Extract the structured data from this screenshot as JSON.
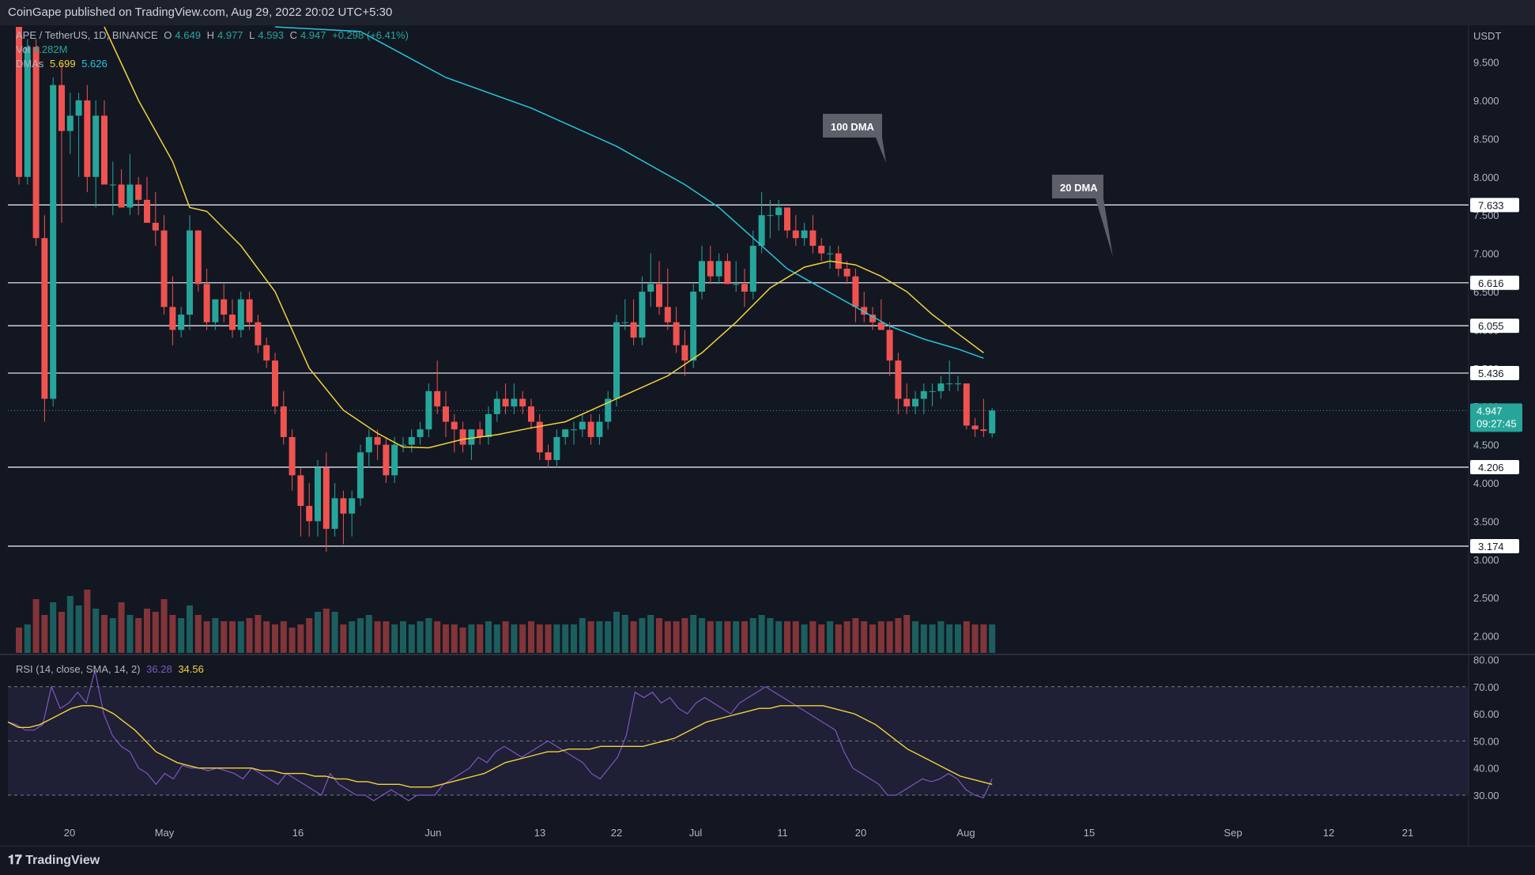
{
  "header": {
    "published": "CoinGape published on TradingView.com, Aug 29, 2022 20:02 UTC+5:30"
  },
  "legend": {
    "symbol": "APE / TetherUS, 1D, BINANCE",
    "o_label": "O",
    "o_value": "4.649",
    "h_label": "H",
    "h_value": "4.977",
    "l_label": "L",
    "l_value": "4.593",
    "c_label": "C",
    "c_value": "4.947",
    "change": "+0.298 (+6.41%)",
    "vol_label": "Vol",
    "vol_value": "4.282M",
    "dma_label": "DMAs",
    "dma_20": "5.699",
    "dma_100": "5.626"
  },
  "rsi_legend": {
    "label": "RSI (14, close, SMA, 14, 2)",
    "rsi": "36.28",
    "sma": "34.56"
  },
  "footer": {
    "brand": "TradingView"
  },
  "colors": {
    "up": "#26a69a",
    "down": "#ef5350",
    "dma20": "#f0d33c",
    "dma100": "#26c6da",
    "rsi": "#7e57c2",
    "rsi_sma": "#f0d33c"
  },
  "chart_data": {
    "type": "candlestick",
    "currency": "USDT",
    "price_ticks": [
      "9.500",
      "9.000",
      "8.500",
      "8.000",
      "7.500",
      "7.000",
      "6.500",
      "6.000",
      "5.500",
      "5.000",
      "4.500",
      "4.000",
      "3.500",
      "3.000",
      "2.500",
      "2.000"
    ],
    "x_ticks": [
      "20",
      "May",
      "16",
      "Jun",
      "13",
      "22",
      "Jul",
      "11",
      "20",
      "Aug",
      "15",
      "Sep",
      "12",
      "21"
    ],
    "levels": [
      {
        "label": "7.633",
        "value": 7.633
      },
      {
        "label": "6.616",
        "value": 6.616
      },
      {
        "label": "6.055",
        "value": 6.055
      },
      {
        "label": "5.436",
        "value": 5.436
      },
      {
        "label": "4.206",
        "value": 4.206
      },
      {
        "label": "3.174",
        "value": 3.174
      }
    ],
    "current_price": {
      "label": "4.947",
      "value": 4.947,
      "countdown": "09:27:45"
    },
    "annotations": [
      {
        "text": "100 DMA"
      },
      {
        "text": "20 DMA"
      }
    ],
    "candles": [
      [
        10.8,
        11.0,
        7.9,
        8.0
      ],
      [
        8.0,
        9.8,
        7.9,
        9.7
      ],
      [
        9.7,
        9.8,
        7.1,
        7.2
      ],
      [
        7.2,
        7.5,
        4.8,
        5.1
      ],
      [
        5.1,
        9.3,
        5.0,
        9.2
      ],
      [
        9.2,
        9.5,
        7.4,
        8.6
      ],
      [
        8.6,
        9.1,
        8.3,
        8.8
      ],
      [
        8.8,
        9.1,
        8.0,
        9.0
      ],
      [
        9.0,
        9.2,
        7.8,
        8.0
      ],
      [
        8.0,
        9.0,
        7.6,
        8.8
      ],
      [
        8.8,
        9.0,
        7.9,
        7.9
      ],
      [
        7.9,
        8.2,
        7.5,
        7.9
      ],
      [
        7.9,
        8.1,
        7.6,
        7.6
      ],
      [
        7.6,
        8.3,
        7.5,
        7.9
      ],
      [
        7.9,
        8.0,
        7.5,
        7.7
      ],
      [
        7.7,
        8.0,
        7.4,
        7.4
      ],
      [
        7.4,
        7.8,
        7.1,
        7.3
      ],
      [
        7.3,
        7.5,
        6.2,
        6.3
      ],
      [
        6.3,
        6.7,
        5.8,
        6.0
      ],
      [
        6.0,
        6.3,
        5.9,
        6.2
      ],
      [
        6.2,
        7.5,
        6.0,
        7.3
      ],
      [
        7.3,
        7.3,
        6.5,
        6.6
      ],
      [
        6.6,
        6.8,
        6.0,
        6.1
      ],
      [
        6.1,
        6.4,
        6.0,
        6.4
      ],
      [
        6.4,
        6.6,
        6.1,
        6.2
      ],
      [
        6.2,
        6.4,
        5.9,
        6.0
      ],
      [
        6.0,
        6.5,
        5.9,
        6.4
      ],
      [
        6.4,
        6.5,
        6.0,
        6.1
      ],
      [
        6.1,
        6.2,
        5.7,
        5.8
      ],
      [
        5.8,
        5.9,
        5.5,
        5.6
      ],
      [
        5.6,
        5.7,
        4.9,
        5.0
      ],
      [
        5.0,
        5.2,
        4.5,
        4.6
      ],
      [
        4.6,
        4.7,
        3.9,
        4.1
      ],
      [
        4.1,
        4.2,
        3.3,
        3.7
      ],
      [
        3.7,
        4.0,
        3.3,
        3.5
      ],
      [
        3.5,
        4.3,
        3.3,
        4.2
      ],
      [
        4.2,
        4.4,
        3.1,
        3.4
      ],
      [
        3.4,
        4.0,
        3.3,
        3.8
      ],
      [
        3.8,
        3.9,
        3.2,
        3.6
      ],
      [
        3.6,
        3.9,
        3.3,
        3.8
      ],
      [
        3.8,
        4.5,
        3.7,
        4.4
      ],
      [
        4.4,
        4.7,
        4.2,
        4.6
      ],
      [
        4.6,
        4.7,
        4.3,
        4.5
      ],
      [
        4.5,
        4.6,
        4.0,
        4.1
      ],
      [
        4.1,
        4.6,
        4.0,
        4.5
      ],
      [
        4.5,
        4.6,
        4.4,
        4.5
      ],
      [
        4.5,
        4.7,
        4.4,
        4.6
      ],
      [
        4.6,
        4.8,
        4.5,
        4.7
      ],
      [
        4.7,
        5.3,
        4.6,
        5.2
      ],
      [
        5.2,
        5.6,
        4.9,
        5.0
      ],
      [
        5.0,
        5.2,
        4.6,
        4.8
      ],
      [
        4.8,
        4.9,
        4.4,
        4.7
      ],
      [
        4.7,
        4.8,
        4.4,
        4.5
      ],
      [
        4.5,
        4.7,
        4.3,
        4.7
      ],
      [
        4.7,
        4.8,
        4.5,
        4.6
      ],
      [
        4.6,
        5.0,
        4.5,
        4.9
      ],
      [
        4.9,
        5.2,
        4.8,
        5.1
      ],
      [
        5.1,
        5.3,
        4.9,
        5.0
      ],
      [
        5.0,
        5.3,
        4.9,
        5.1
      ],
      [
        5.1,
        5.2,
        4.9,
        5.0
      ],
      [
        5.0,
        5.1,
        4.7,
        4.8
      ],
      [
        4.8,
        4.9,
        4.3,
        4.4
      ],
      [
        4.4,
        4.5,
        4.2,
        4.3
      ],
      [
        4.3,
        4.7,
        4.2,
        4.6
      ],
      [
        4.6,
        4.7,
        4.5,
        4.7
      ],
      [
        4.7,
        4.8,
        4.5,
        4.7
      ],
      [
        4.7,
        4.9,
        4.6,
        4.8
      ],
      [
        4.8,
        4.9,
        4.5,
        4.6
      ],
      [
        4.6,
        4.9,
        4.5,
        4.8
      ],
      [
        4.8,
        5.2,
        4.7,
        5.1
      ],
      [
        5.1,
        6.2,
        5.0,
        6.1
      ],
      [
        6.1,
        6.4,
        6.0,
        6.1
      ],
      [
        6.1,
        6.4,
        5.8,
        5.9
      ],
      [
        5.9,
        6.7,
        5.8,
        6.5
      ],
      [
        6.5,
        7.0,
        6.3,
        6.6
      ],
      [
        6.6,
        6.9,
        6.2,
        6.3
      ],
      [
        6.3,
        6.8,
        6.0,
        6.1
      ],
      [
        6.1,
        6.3,
        5.7,
        5.8
      ],
      [
        5.8,
        6.0,
        5.4,
        5.6
      ],
      [
        5.6,
        6.6,
        5.5,
        6.5
      ],
      [
        6.5,
        7.1,
        6.4,
        6.9
      ],
      [
        6.9,
        7.1,
        6.6,
        6.7
      ],
      [
        6.7,
        7.0,
        6.6,
        6.9
      ],
      [
        6.9,
        7.0,
        6.6,
        6.6
      ],
      [
        6.6,
        6.9,
        6.5,
        6.6
      ],
      [
        6.6,
        6.8,
        6.3,
        6.5
      ],
      [
        6.5,
        7.3,
        6.4,
        7.1
      ],
      [
        7.1,
        7.8,
        7.0,
        7.5
      ],
      [
        7.5,
        7.7,
        7.2,
        7.5
      ],
      [
        7.5,
        7.7,
        7.3,
        7.6
      ],
      [
        7.6,
        7.6,
        7.2,
        7.3
      ],
      [
        7.3,
        7.5,
        7.1,
        7.2
      ],
      [
        7.2,
        7.4,
        7.1,
        7.3
      ],
      [
        7.3,
        7.5,
        7.0,
        7.1
      ],
      [
        7.1,
        7.2,
        6.9,
        7.0
      ],
      [
        7.0,
        7.1,
        6.8,
        7.0
      ],
      [
        7.0,
        7.1,
        6.7,
        6.8
      ],
      [
        6.8,
        6.9,
        6.6,
        6.7
      ],
      [
        6.7,
        6.8,
        6.1,
        6.3
      ],
      [
        6.3,
        6.5,
        6.1,
        6.2
      ],
      [
        6.2,
        6.3,
        6.0,
        6.1
      ],
      [
        6.1,
        6.4,
        6.0,
        6.0
      ],
      [
        6.0,
        6.1,
        5.4,
        5.6
      ],
      [
        5.6,
        5.7,
        4.9,
        5.1
      ],
      [
        5.1,
        5.3,
        4.9,
        5.0
      ],
      [
        5.0,
        5.2,
        4.9,
        5.1
      ],
      [
        5.1,
        5.3,
        4.9,
        5.2
      ],
      [
        5.2,
        5.3,
        5.0,
        5.2
      ],
      [
        5.2,
        5.4,
        5.1,
        5.3
      ],
      [
        5.3,
        5.6,
        5.2,
        5.3
      ],
      [
        5.3,
        5.4,
        5.2,
        5.3
      ],
      [
        5.3,
        5.3,
        4.7,
        4.75
      ],
      [
        4.75,
        4.85,
        4.6,
        4.7
      ],
      [
        4.7,
        5.1,
        4.6,
        4.68
      ],
      [
        4.649,
        4.977,
        4.593,
        4.947
      ]
    ],
    "volume_relative": [
      0.8,
      0.9,
      1.7,
      1.2,
      1.6,
      1.3,
      1.8,
      1.5,
      2.0,
      1.4,
      1.2,
      1.1,
      1.6,
      1.2,
      1.1,
      1.4,
      1.3,
      1.7,
      1.2,
      1.1,
      1.5,
      1.2,
      1.0,
      1.1,
      1.0,
      1.0,
      1.0,
      1.1,
      1.2,
      1.0,
      0.9,
      1.0,
      0.8,
      0.9,
      1.1,
      1.3,
      1.4,
      1.3,
      0.9,
      1.0,
      1.1,
      1.2,
      1.0,
      1.0,
      0.9,
      1.0,
      0.9,
      1.0,
      1.1,
      1.0,
      0.9,
      0.9,
      0.8,
      0.9,
      0.9,
      1.0,
      0.9,
      1.0,
      0.9,
      0.9,
      1.0,
      0.9,
      0.9,
      0.9,
      0.9,
      0.9,
      1.1,
      1.0,
      1.0,
      1.0,
      1.3,
      1.2,
      1.0,
      1.1,
      1.2,
      1.1,
      1.0,
      1.0,
      1.1,
      1.2,
      1.1,
      1.0,
      1.0,
      1.0,
      1.0,
      1.0,
      1.1,
      1.2,
      1.1,
      1.0,
      1.0,
      1.0,
      0.9,
      1.0,
      0.9,
      1.0,
      0.9,
      1.0,
      1.1,
      1.0,
      0.9,
      1.0,
      1.0,
      1.1,
      1.2,
      1.0,
      0.9,
      0.9,
      1.0,
      0.9,
      0.9,
      1.0,
      0.9,
      0.9,
      0.9,
      0.8
    ],
    "dma20": [
      [
        10,
        10.5
      ],
      [
        14,
        9.0
      ],
      [
        18,
        8.2
      ],
      [
        20,
        7.6
      ],
      [
        22,
        7.55
      ],
      [
        26,
        7.1
      ],
      [
        30,
        6.5
      ],
      [
        34,
        5.5
      ],
      [
        38,
        4.95
      ],
      [
        42,
        4.65
      ],
      [
        45,
        4.47
      ],
      [
        48,
        4.46
      ],
      [
        52,
        4.57
      ],
      [
        56,
        4.63
      ],
      [
        60,
        4.72
      ],
      [
        64,
        4.8
      ],
      [
        68,
        5.0
      ],
      [
        72,
        5.2
      ],
      [
        76,
        5.4
      ],
      [
        80,
        5.7
      ],
      [
        84,
        6.1
      ],
      [
        88,
        6.55
      ],
      [
        92,
        6.82
      ],
      [
        95,
        6.9
      ],
      [
        98,
        6.85
      ],
      [
        101,
        6.7
      ],
      [
        104,
        6.5
      ],
      [
        107,
        6.2
      ],
      [
        110,
        5.95
      ],
      [
        113,
        5.7
      ]
    ],
    "dma100": [
      [
        30,
        10.7
      ],
      [
        40,
        9.9
      ],
      [
        50,
        9.3
      ],
      [
        60,
        8.9
      ],
      [
        70,
        8.4
      ],
      [
        78,
        7.9
      ],
      [
        82,
        7.6
      ],
      [
        86,
        7.2
      ],
      [
        90,
        6.8
      ],
      [
        94,
        6.55
      ],
      [
        98,
        6.3
      ],
      [
        102,
        6.05
      ],
      [
        106,
        5.88
      ],
      [
        110,
        5.75
      ],
      [
        113,
        5.63
      ]
    ],
    "rsi": {
      "ticks": [
        "80.00",
        "70.00",
        "60.00",
        "50.00",
        "40.00",
        "30.00"
      ],
      "band": [
        30,
        70
      ],
      "midline": 50,
      "series": [
        57,
        56,
        54,
        54,
        56,
        70,
        62,
        64,
        68,
        64,
        76,
        60,
        52,
        48,
        46,
        40,
        38,
        34,
        38,
        36,
        41,
        40,
        40,
        39,
        40,
        39,
        38,
        36,
        40,
        38,
        36,
        34,
        38,
        36,
        34,
        32,
        30,
        38,
        34,
        32,
        30,
        30,
        28,
        30,
        32,
        30,
        28,
        30,
        30,
        30,
        34,
        36,
        38,
        40,
        44,
        42,
        46,
        48,
        46,
        44,
        46,
        48,
        50,
        48,
        46,
        44,
        42,
        38,
        36,
        40,
        44,
        52,
        68,
        66,
        68,
        64,
        66,
        62,
        60,
        64,
        66,
        64,
        62,
        60,
        64,
        66,
        68,
        70,
        68,
        66,
        64,
        62,
        60,
        58,
        56,
        54,
        46,
        40,
        38,
        36,
        34,
        30,
        30,
        32,
        34,
        36,
        35,
        36,
        38,
        36,
        32,
        30,
        29,
        36
      ],
      "sma": [
        57,
        55,
        55,
        56,
        58,
        60,
        62,
        63,
        63,
        62,
        60,
        57,
        54,
        50,
        46,
        44,
        42,
        41,
        40,
        40,
        40,
        40,
        40,
        40,
        39,
        39,
        38,
        38,
        38,
        37,
        37,
        36,
        36,
        35,
        35,
        34,
        34,
        34,
        33,
        33,
        33,
        34,
        35,
        36,
        37,
        38,
        40,
        42,
        43,
        44,
        45,
        46,
        46,
        47,
        47,
        47,
        48,
        48,
        48,
        48,
        48,
        49,
        50,
        51,
        53,
        55,
        57,
        58,
        59,
        60,
        61,
        62,
        62,
        63,
        63,
        63,
        63,
        63,
        62,
        61,
        60,
        58,
        56,
        53,
        50,
        47,
        45,
        43,
        41,
        39,
        37,
        36,
        35,
        34
      ]
    }
  }
}
